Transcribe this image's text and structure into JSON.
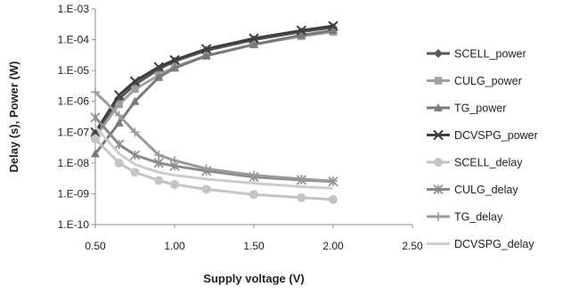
{
  "chart_data": {
    "type": "line",
    "title": "",
    "xlabel": "Supply voltage (V)",
    "ylabel": "Delay (s), Power (W)",
    "xlim": [
      0.5,
      2.5
    ],
    "ylim": [
      1e-10,
      0.001
    ],
    "y_scale": "log",
    "x_ticks": [
      0.5,
      1.0,
      1.5,
      2.0,
      2.5
    ],
    "x_tick_labels": [
      "0.50",
      "1.00",
      "1.50",
      "2.00",
      "2.50"
    ],
    "y_ticks": [
      1e-10,
      1e-09,
      1e-08,
      1e-07,
      1e-06,
      1e-05,
      0.0001,
      0.001
    ],
    "y_tick_labels": [
      "1.E-10",
      "1.E-09",
      "1.E-08",
      "1.E-07",
      "1.E-06",
      "1.E-05",
      "1.E-04",
      "1.E-03"
    ],
    "grid": false,
    "legend_position": "right",
    "x": [
      0.5,
      0.65,
      0.75,
      0.9,
      1.0,
      1.2,
      1.5,
      1.8,
      2.0
    ],
    "series": [
      {
        "name": "SCELL_power",
        "color": "#5a5a5a",
        "marker": "diamond",
        "values": [
          9e-08,
          1.2e-06,
          3.5e-06,
          1.1e-05,
          2e-05,
          4.5e-05,
          0.0001,
          0.00018,
          0.00025
        ]
      },
      {
        "name": "CULG_power",
        "color": "#a0a0a0",
        "marker": "square",
        "values": [
          7e-08,
          8e-07,
          2.5e-06,
          7e-06,
          1.3e-05,
          3e-05,
          7e-05,
          0.00013,
          0.00018
        ]
      },
      {
        "name": "TG_power",
        "color": "#7a7a7a",
        "marker": "triangle",
        "values": [
          2e-08,
          2e-07,
          1e-06,
          6e-06,
          1.2e-05,
          3e-05,
          7e-05,
          0.00014,
          0.0002
        ]
      },
      {
        "name": "DCVSPG_power",
        "color": "#3e3e3e",
        "marker": "x",
        "values": [
          1e-07,
          1.6e-06,
          4.5e-06,
          1.3e-05,
          2.2e-05,
          5e-05,
          0.00011,
          0.0002,
          0.00028
        ]
      },
      {
        "name": "SCELL_delay",
        "color": "#c4c4c4",
        "marker": "circle",
        "values": [
          6e-08,
          1e-08,
          5e-09,
          2.7e-09,
          2e-09,
          1.4e-09,
          9.5e-10,
          7.5e-10,
          6.5e-10
        ]
      },
      {
        "name": "CULG_delay",
        "color": "#8a8a8a",
        "marker": "asterisk",
        "values": [
          3e-07,
          4e-08,
          1.8e-08,
          1e-08,
          8e-09,
          5.5e-09,
          3.5e-09,
          2.8e-09,
          2.5e-09
        ]
      },
      {
        "name": "TG_delay",
        "color": "#9a9a9a",
        "marker": "plus",
        "values": [
          2e-06,
          3.5e-07,
          1e-07,
          1.8e-08,
          1.2e-08,
          6.5e-09,
          4e-09,
          3e-09,
          2.6e-09
        ]
      },
      {
        "name": "DCVSPG_delay",
        "color": "#cccccc",
        "marker": "none",
        "values": [
          1.5e-07,
          2e-08,
          9e-09,
          5e-09,
          4e-09,
          3e-09,
          2.2e-09,
          1.7e-09,
          1.5e-09
        ]
      }
    ]
  }
}
